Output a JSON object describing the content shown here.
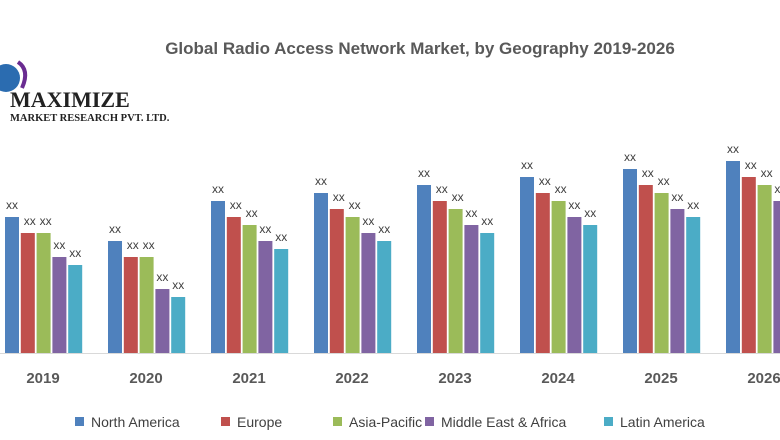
{
  "logo": {
    "name": "MAXIMIZE",
    "subtitle": "MARKET RESEARCH PVT. LTD."
  },
  "chart_data": {
    "type": "bar",
    "title": "Global Radio Access Network Market, by Geography 2019-2026",
    "xlabel": "",
    "ylabel": "",
    "categories": [
      "2019",
      "2020",
      "2021",
      "2022",
      "2023",
      "2024",
      "2025",
      "2026"
    ],
    "data_label": "xx",
    "grid": false,
    "legend_position": "bottom",
    "ylim": [
      0,
      25
    ],
    "series": [
      {
        "name": "North America",
        "color": "#4F81BD",
        "values": [
          17,
          14,
          19,
          20,
          21,
          22,
          23,
          24
        ]
      },
      {
        "name": "Europe",
        "color": "#C0504D",
        "values": [
          15,
          12,
          17,
          18,
          19,
          20,
          21,
          22
        ]
      },
      {
        "name": "Asia-Pacific",
        "color": "#9BBB59",
        "values": [
          15,
          12,
          16,
          17,
          18,
          19,
          20,
          21
        ]
      },
      {
        "name": "Middle East & Africa",
        "color": "#8064A2",
        "values": [
          12,
          8,
          14,
          15,
          16,
          17,
          18,
          19
        ]
      },
      {
        "name": "Latin America",
        "color": "#4BACC6",
        "values": [
          11,
          7,
          13,
          14,
          15,
          16,
          17,
          18
        ]
      }
    ]
  }
}
